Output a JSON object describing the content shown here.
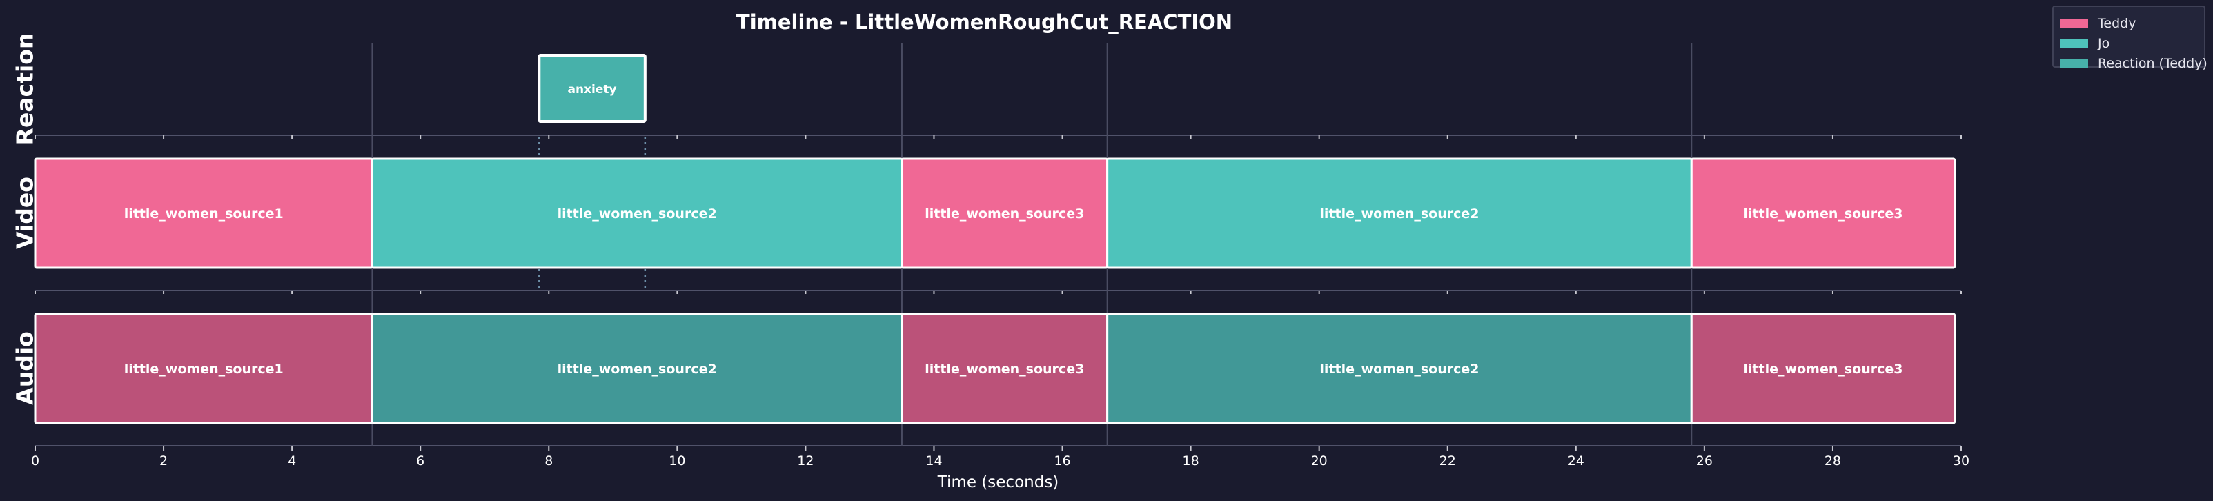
{
  "chart_data": {
    "type": "timeline",
    "title": "Timeline - LittleWomenRoughCut_REACTION",
    "xlabel": "Time (seconds)",
    "xlim": [
      0,
      30
    ],
    "xticks": [
      0,
      2,
      4,
      6,
      8,
      10,
      12,
      14,
      16,
      18,
      20,
      22,
      24,
      26,
      28,
      30
    ],
    "tracks": [
      {
        "name": "Reaction",
        "clips": [
          {
            "start": 7.85,
            "end": 9.5,
            "label": "anxiety",
            "speaker": "Reaction (Teddy)"
          }
        ]
      },
      {
        "name": "Video",
        "clips": [
          {
            "start": 0.0,
            "end": 5.25,
            "label": "little_women_source1",
            "speaker": "Teddy"
          },
          {
            "start": 5.25,
            "end": 13.5,
            "label": "little_women_source2",
            "speaker": "Jo"
          },
          {
            "start": 13.5,
            "end": 16.7,
            "label": "little_women_source3",
            "speaker": "Teddy"
          },
          {
            "start": 16.7,
            "end": 25.8,
            "label": "little_women_source2",
            "speaker": "Jo"
          },
          {
            "start": 25.8,
            "end": 29.9,
            "label": "little_women_source3",
            "speaker": "Teddy"
          }
        ]
      },
      {
        "name": "Audio",
        "clips": [
          {
            "start": 0.0,
            "end": 5.25,
            "label": "little_women_source1",
            "speaker": "Teddy"
          },
          {
            "start": 5.25,
            "end": 13.5,
            "label": "little_women_source2",
            "speaker": "Jo"
          },
          {
            "start": 13.5,
            "end": 16.7,
            "label": "little_women_source3",
            "speaker": "Teddy"
          },
          {
            "start": 16.7,
            "end": 25.8,
            "label": "little_women_source2",
            "speaker": "Jo"
          },
          {
            "start": 25.8,
            "end": 29.9,
            "label": "little_women_source3",
            "speaker": "Teddy"
          }
        ]
      }
    ],
    "cut_lines": [
      5.25,
      13.5,
      16.7,
      25.8
    ],
    "reaction_markers": [
      7.85,
      9.5
    ],
    "legend": {
      "placement": "top-right",
      "entries": [
        "Teddy",
        "Jo",
        "Reaction (Teddy)"
      ]
    },
    "colors": {
      "background": "#1a1b2e",
      "Teddy": "#f06895",
      "Jo": "#4ec3bb",
      "Reaction (Teddy)": "#47b1aa",
      "Teddy_audio": "#bb5279",
      "Jo_audio": "#419897",
      "text": "#ffffff",
      "axis": "#50526a",
      "cut_line": "#4a4c62",
      "marker": "#6d8fa8"
    }
  }
}
